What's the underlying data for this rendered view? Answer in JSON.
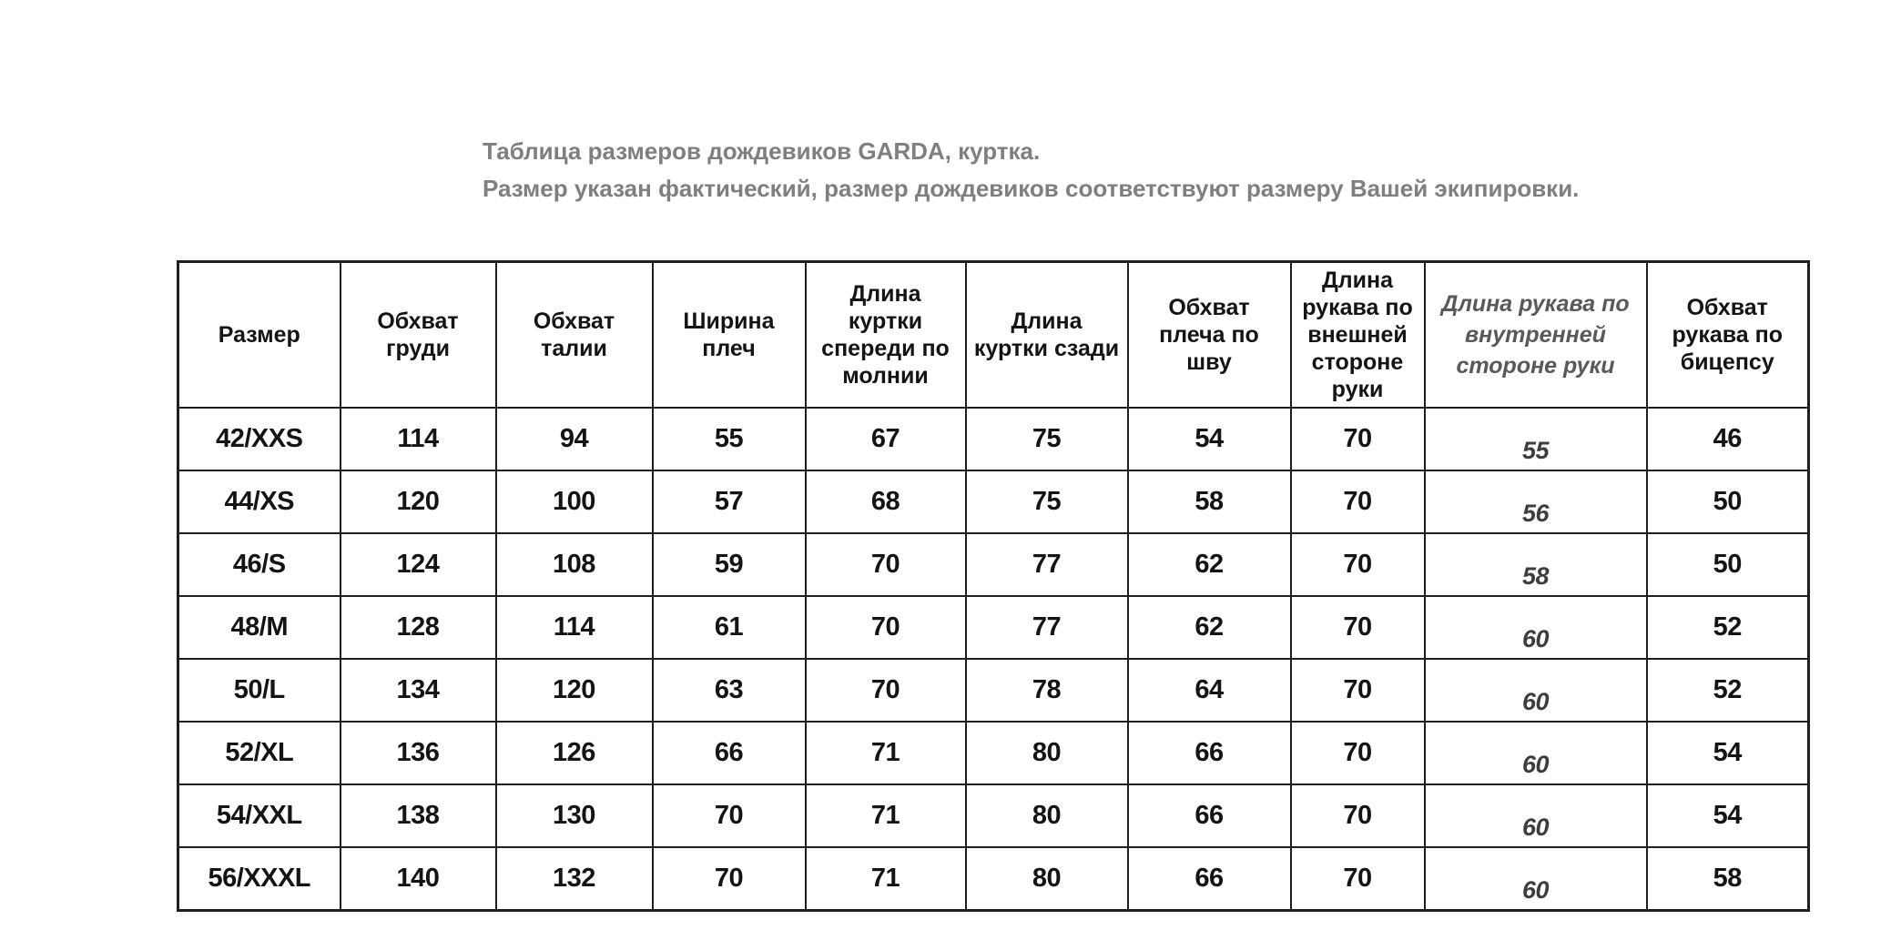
{
  "page": {
    "background_color": "#ffffff",
    "title_color": "#7f7f7f",
    "border_color": "#1f1f1f",
    "text_color": "#141414",
    "inner_sleeve_column_color": "#3d3d3d"
  },
  "title": {
    "line1": "Таблица размеров дождевиков GARDA, куртка.",
    "line2": "Размер указан фактический, размер дождевиков соответствуют размеру Вашей экипировки."
  },
  "table": {
    "headers": [
      "Размер",
      "Обхват груди",
      "Обхват талии",
      "Ширина плеч",
      "Длина куртки спереди по молнии",
      "Длина куртки сзади",
      "Обхват плеча по шву",
      "Длина рукава по внешней стороне руки",
      "Длина рукава по внутренней стороне руки",
      "Обхват рукава по бицепсу"
    ],
    "rows": [
      [
        "42/XXS",
        "114",
        "94",
        "55",
        "67",
        "75",
        "54",
        "70",
        "55",
        "46"
      ],
      [
        "44/XS",
        "120",
        "100",
        "57",
        "68",
        "75",
        "58",
        "70",
        "56",
        "50"
      ],
      [
        "46/S",
        "124",
        "108",
        "59",
        "70",
        "77",
        "62",
        "70",
        "58",
        "50"
      ],
      [
        "48/M",
        "128",
        "114",
        "61",
        "70",
        "77",
        "62",
        "70",
        "60",
        "52"
      ],
      [
        "50/L",
        "134",
        "120",
        "63",
        "70",
        "78",
        "64",
        "70",
        "60",
        "52"
      ],
      [
        "52/XL",
        "136",
        "126",
        "66",
        "71",
        "80",
        "66",
        "70",
        "60",
        "54"
      ],
      [
        "54/XXL",
        "138",
        "130",
        "70",
        "71",
        "80",
        "66",
        "70",
        "60",
        "54"
      ],
      [
        "56/XXXL",
        "140",
        "132",
        "70",
        "71",
        "80",
        "66",
        "70",
        "60",
        "58"
      ]
    ]
  }
}
